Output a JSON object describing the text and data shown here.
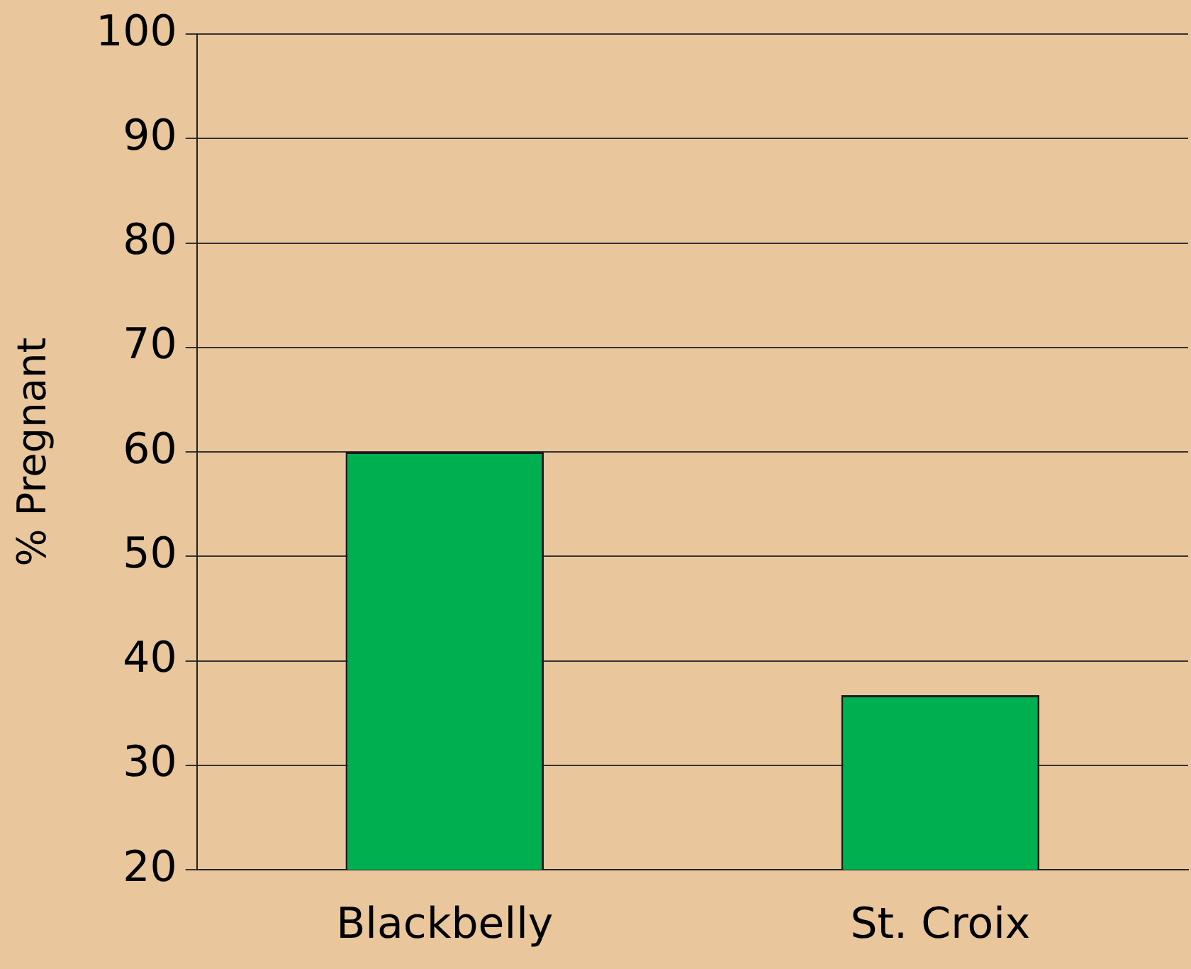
{
  "chart_data": {
    "type": "bar",
    "ylabel": "% Pregnant",
    "categories": [
      "Blackbelly",
      "St. Croix"
    ],
    "values": [
      60,
      36.7
    ],
    "color": "#00b050",
    "ylim": [
      20,
      100
    ],
    "yticks": [
      20,
      30,
      40,
      50,
      60,
      70,
      80,
      90,
      100
    ],
    "grid": "y",
    "legend": false
  }
}
